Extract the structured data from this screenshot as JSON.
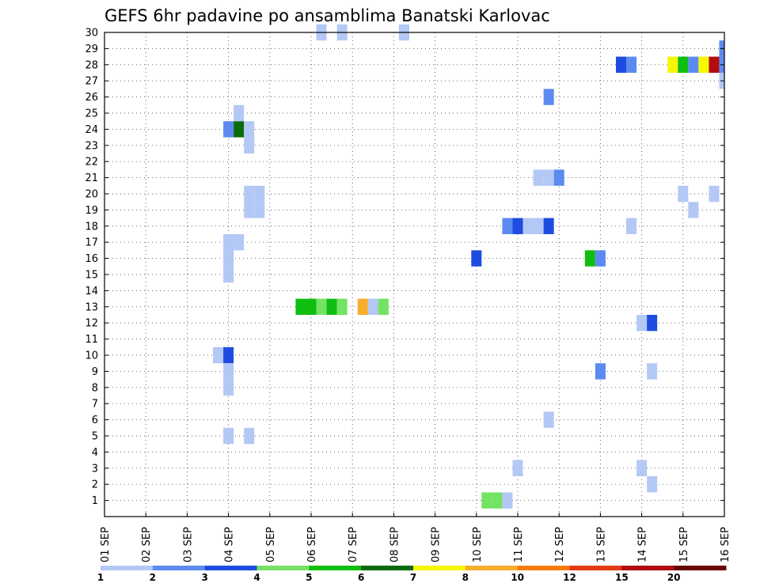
{
  "chart_data": {
    "type": "heatmap",
    "title": "GEFS 6hr padavine po ansamblima Banatski Karlovac",
    "xlabel": "",
    "ylabel": "",
    "x_ticks": [
      "01 SEP",
      "02 SEP",
      "03 SEP",
      "04 SEP",
      "05 SEP",
      "06 SEP",
      "07 SEP",
      "08 SEP",
      "09 SEP",
      "10 SEP",
      "11 SEP",
      "12 SEP",
      "13 SEP",
      "14 SEP",
      "15 SEP",
      "16 SEP"
    ],
    "xlim": [
      0,
      15
    ],
    "x_unit": "days since 01 SEP (6-hour steps)",
    "ylim": [
      0,
      30
    ],
    "y_ticks": [
      1,
      2,
      3,
      4,
      5,
      6,
      7,
      8,
      9,
      10,
      11,
      12,
      13,
      14,
      15,
      16,
      17,
      18,
      19,
      20,
      21,
      22,
      23,
      24,
      25,
      26,
      27,
      28,
      29,
      30
    ],
    "grid": true,
    "legend": {
      "placement": "bottom",
      "labels": [
        "1",
        "2",
        "3",
        "4",
        "5",
        "6",
        "7",
        "8",
        "10",
        "12",
        "15",
        "20"
      ],
      "colors": [
        "#b3c8f5",
        "#5c8af0",
        "#1f4ce0",
        "#74e262",
        "#0fbe10",
        "#0b6a0a",
        "#f6f606",
        "#f8ad2c",
        "#fb7c0a",
        "#e43a12",
        "#b00e0e",
        "#6a0606"
      ]
    },
    "series": [
      {
        "x": 2.75,
        "y": 10,
        "level": 1
      },
      {
        "x": 3.0,
        "y": 10,
        "level": 3
      },
      {
        "x": 3.0,
        "y": 9,
        "level": 1
      },
      {
        "x": 3.0,
        "y": 8,
        "level": 1
      },
      {
        "x": 3.0,
        "y": 5,
        "level": 1
      },
      {
        "x": 3.5,
        "y": 5,
        "level": 1
      },
      {
        "x": 3.0,
        "y": 15,
        "level": 1
      },
      {
        "x": 3.0,
        "y": 16,
        "level": 1
      },
      {
        "x": 3.0,
        "y": 17,
        "level": 1
      },
      {
        "x": 3.25,
        "y": 17,
        "level": 1
      },
      {
        "x": 3.0,
        "y": 24,
        "level": 2
      },
      {
        "x": 3.25,
        "y": 24,
        "level": 6
      },
      {
        "x": 3.5,
        "y": 24,
        "level": 1
      },
      {
        "x": 3.5,
        "y": 23,
        "level": 1
      },
      {
        "x": 3.25,
        "y": 25,
        "level": 1
      },
      {
        "x": 3.5,
        "y": 20,
        "level": 1
      },
      {
        "x": 3.75,
        "y": 20,
        "level": 1
      },
      {
        "x": 3.5,
        "y": 19,
        "level": 1
      },
      {
        "x": 3.75,
        "y": 19,
        "level": 1
      },
      {
        "x": 5.25,
        "y": 30,
        "level": 1
      },
      {
        "x": 5.75,
        "y": 30,
        "level": 1
      },
      {
        "x": 7.25,
        "y": 30,
        "level": 1
      },
      {
        "x": 4.75,
        "y": 13,
        "level": 5
      },
      {
        "x": 5.0,
        "y": 13,
        "level": 5
      },
      {
        "x": 5.25,
        "y": 13,
        "level": 4
      },
      {
        "x": 5.5,
        "y": 13,
        "level": 5
      },
      {
        "x": 5.75,
        "y": 13,
        "level": 4
      },
      {
        "x": 6.25,
        "y": 13,
        "level": 8
      },
      {
        "x": 6.5,
        "y": 13,
        "level": 1
      },
      {
        "x": 6.75,
        "y": 13,
        "level": 4
      },
      {
        "x": 9.0,
        "y": 16,
        "level": 3
      },
      {
        "x": 9.25,
        "y": 1,
        "level": 4
      },
      {
        "x": 9.5,
        "y": 1,
        "level": 4
      },
      {
        "x": 9.75,
        "y": 1,
        "level": 1
      },
      {
        "x": 9.75,
        "y": 18,
        "level": 2
      },
      {
        "x": 10.0,
        "y": 18,
        "level": 3
      },
      {
        "x": 10.25,
        "y": 18,
        "level": 1
      },
      {
        "x": 10.5,
        "y": 18,
        "level": 1
      },
      {
        "x": 10.75,
        "y": 18,
        "level": 3
      },
      {
        "x": 10.0,
        "y": 3,
        "level": 1
      },
      {
        "x": 10.5,
        "y": 21,
        "level": 1
      },
      {
        "x": 10.75,
        "y": 21,
        "level": 1
      },
      {
        "x": 11.0,
        "y": 21,
        "level": 2
      },
      {
        "x": 10.75,
        "y": 26,
        "level": 2
      },
      {
        "x": 10.75,
        "y": 6,
        "level": 1
      },
      {
        "x": 11.75,
        "y": 16,
        "level": 5
      },
      {
        "x": 12.0,
        "y": 16,
        "level": 2
      },
      {
        "x": 12.0,
        "y": 9,
        "level": 2
      },
      {
        "x": 12.5,
        "y": 28,
        "level": 3
      },
      {
        "x": 12.75,
        "y": 28,
        "level": 2
      },
      {
        "x": 12.75,
        "y": 18,
        "level": 1
      },
      {
        "x": 13.0,
        "y": 12,
        "level": 1
      },
      {
        "x": 13.25,
        "y": 12,
        "level": 3
      },
      {
        "x": 13.25,
        "y": 9,
        "level": 1
      },
      {
        "x": 13.0,
        "y": 3,
        "level": 1
      },
      {
        "x": 13.25,
        "y": 2,
        "level": 1
      },
      {
        "x": 13.75,
        "y": 28,
        "level": 7
      },
      {
        "x": 14.0,
        "y": 28,
        "level": 5
      },
      {
        "x": 14.25,
        "y": 28,
        "level": 2
      },
      {
        "x": 14.5,
        "y": 28,
        "level": 7
      },
      {
        "x": 14.75,
        "y": 28,
        "level": 11
      },
      {
        "x": 14.0,
        "y": 20,
        "level": 1
      },
      {
        "x": 14.25,
        "y": 19,
        "level": 1
      },
      {
        "x": 14.75,
        "y": 20,
        "level": 1
      },
      {
        "x": 15.0,
        "y": 29,
        "level": 2
      },
      {
        "x": 15.0,
        "y": 28,
        "level": 2
      },
      {
        "x": 15.0,
        "y": 27,
        "level": 1
      }
    ]
  }
}
